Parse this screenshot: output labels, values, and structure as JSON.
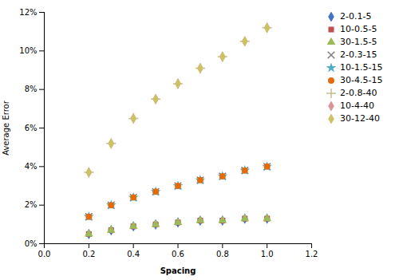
{
  "chart_data": {
    "type": "scatter",
    "title": "",
    "xlabel": "Spacing",
    "ylabel": "Average Error",
    "xlim": [
      0,
      1.2
    ],
    "ylim": [
      0,
      0.12
    ],
    "xticks": [
      {
        "value": 0,
        "label": "0.0"
      },
      0.2,
      0.4,
      0.6,
      0.8,
      {
        "value": 1.0,
        "label": "1.0"
      },
      1.2
    ],
    "yticks": [
      {
        "value": 0,
        "label": "0%"
      },
      {
        "value": 0.02,
        "label": "2%"
      },
      {
        "value": 0.04,
        "label": "4%"
      },
      {
        "value": 0.06,
        "label": "6%"
      },
      {
        "value": 0.08,
        "label": "8%"
      },
      {
        "value": 0.1,
        "label": "10%"
      },
      {
        "value": 0.12,
        "label": "12%"
      }
    ],
    "grid": false,
    "legend": "right",
    "x": [
      0.2,
      0.3,
      0.4,
      0.5,
      0.6,
      0.7,
      0.8,
      0.9,
      1.0
    ],
    "series": [
      {
        "name": "2-0.1-5",
        "color": "#4472C4",
        "marker": "diamond",
        "values": [
          0.005,
          0.007,
          0.009,
          0.01,
          0.011,
          0.012,
          0.012,
          0.013,
          0.013
        ]
      },
      {
        "name": "10-0.5-5",
        "color": "#C0504D",
        "marker": "square",
        "values": [
          0.005,
          0.007,
          0.009,
          0.01,
          0.011,
          0.012,
          0.012,
          0.013,
          0.013
        ]
      },
      {
        "name": "30-1.5-5",
        "color": "#9BBB59",
        "marker": "triangle",
        "values": [
          0.005,
          0.007,
          0.009,
          0.01,
          0.011,
          0.012,
          0.012,
          0.013,
          0.013
        ]
      },
      {
        "name": "2-0.3-15",
        "color": "#808080",
        "marker": "x",
        "values": [
          0.014,
          0.02,
          0.024,
          0.027,
          0.03,
          0.033,
          0.035,
          0.038,
          0.04
        ]
      },
      {
        "name": "10-1.5-15",
        "color": "#4BACC6",
        "marker": "star",
        "values": [
          0.014,
          0.02,
          0.024,
          0.027,
          0.03,
          0.033,
          0.035,
          0.038,
          0.04
        ]
      },
      {
        "name": "30-4.5-15",
        "color": "#E36C09",
        "marker": "circle",
        "values": [
          0.014,
          0.02,
          0.024,
          0.027,
          0.03,
          0.033,
          0.035,
          0.038,
          0.04
        ]
      },
      {
        "name": "2-0.8-40",
        "color": "#C4BD97",
        "marker": "plus",
        "values": [
          0.037,
          0.052,
          0.065,
          0.075,
          0.083,
          0.091,
          0.097,
          0.105,
          0.112
        ]
      },
      {
        "name": "10-4-40",
        "color": "#D99694",
        "marker": "diamond",
        "values": [
          0.037,
          0.052,
          0.065,
          0.075,
          0.083,
          0.091,
          0.097,
          0.105,
          0.112
        ]
      },
      {
        "name": "30-12-40",
        "color": "#CCC264",
        "marker": "diamond",
        "values": [
          0.037,
          0.052,
          0.065,
          0.075,
          0.083,
          0.091,
          0.097,
          0.105,
          0.112
        ]
      }
    ]
  }
}
